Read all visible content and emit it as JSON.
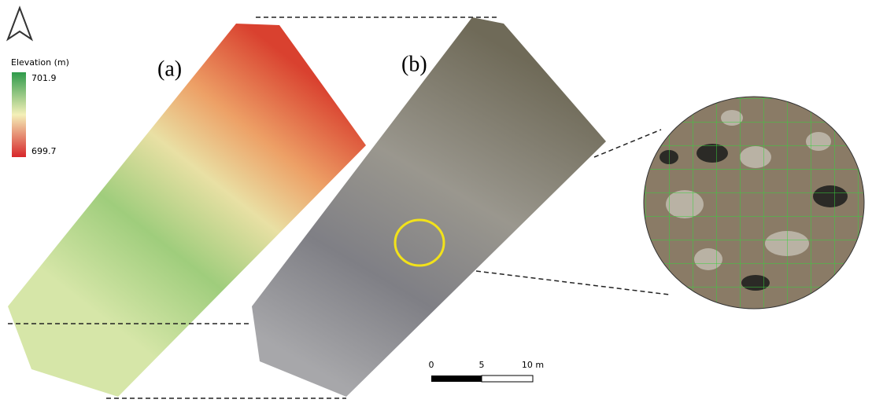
{
  "panels": {
    "a": "(a)",
    "b": "(b)"
  },
  "legend": {
    "title": "Elevation (m)",
    "max": "701.9",
    "min": "699.7"
  },
  "scale_bar": {
    "labels": [
      "0",
      "5",
      "10 m"
    ]
  }
}
